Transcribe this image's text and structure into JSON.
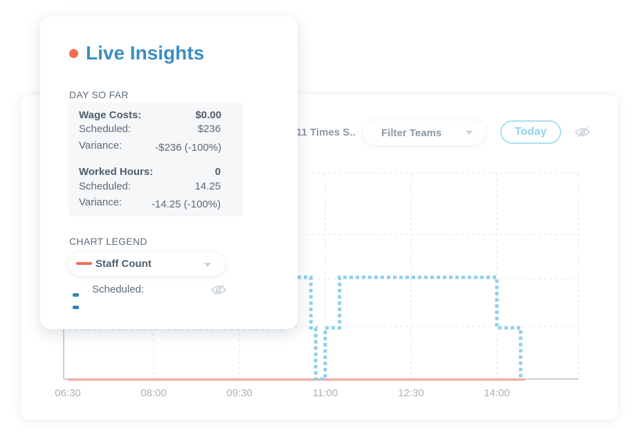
{
  "toolbar": {
    "truncated_filter": "11 Times S..",
    "filter_teams": "Filter Teams",
    "today": "Today",
    "hidden_icon": "eye-off-icon"
  },
  "live_insights": {
    "title": "Live Insights",
    "day_so_far_heading": "DAY SO FAR",
    "wage_costs": {
      "label": "Wage Costs:",
      "value": "$0.00",
      "scheduled_label": "Scheduled:",
      "scheduled_value": "$236",
      "variance_label": "Variance:",
      "variance_value": "-$236 (-100%)"
    },
    "worked_hours": {
      "label": "Worked Hours:",
      "value": "0",
      "scheduled_label": "Scheduled:",
      "scheduled_value": "14.25",
      "variance_label": "Variance:",
      "variance_value": "-14.25 (-100%)"
    },
    "chart_legend_heading": "CHART LEGEND",
    "legend_selected": "Staff Count",
    "legend_scheduled": "Scheduled:",
    "legend_eye_icon": "eye-off-icon"
  },
  "colors": {
    "accent_blue": "#3a8ec3",
    "staff_count": "#f26d55",
    "scheduled_line": "#8fd0ea",
    "today_border": "#a9dfef"
  },
  "chart_data": {
    "type": "line",
    "x_ticks": [
      "06:30",
      "08:00",
      "09:30",
      "11:00",
      "12:30",
      "14:00"
    ],
    "series": [
      {
        "name": "Staff Count",
        "points": [
          [
            "06:30",
            0
          ],
          [
            "14:30",
            0
          ]
        ]
      },
      {
        "name": "Scheduled",
        "step": true,
        "points": [
          [
            "06:30",
            1
          ],
          [
            "10:15",
            1
          ],
          [
            "10:15",
            2
          ],
          [
            "10:45",
            2
          ],
          [
            "10:45",
            1
          ],
          [
            "10:50",
            1
          ],
          [
            "10:50",
            0
          ],
          [
            "11:00",
            0
          ],
          [
            "11:00",
            1
          ],
          [
            "11:15",
            1
          ],
          [
            "11:15",
            2
          ],
          [
            "14:00",
            2
          ],
          [
            "14:00",
            1
          ],
          [
            "14:25",
            1
          ],
          [
            "14:25",
            0
          ]
        ]
      }
    ],
    "grid": true
  }
}
